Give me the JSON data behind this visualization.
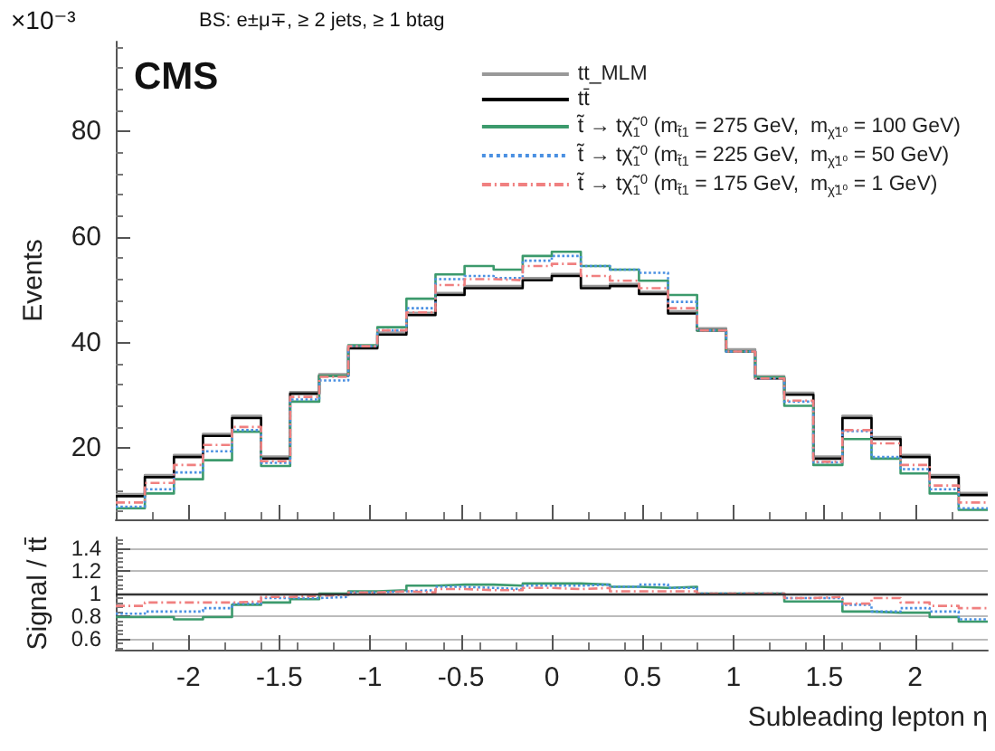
{
  "chart_data": [
    {
      "type": "histogram",
      "ylabel": "Events",
      "annotations": [
        "×10⁻³",
        "BS: e±μ∓, ≥ 2 jets, ≥ 1 btag",
        "CMS"
      ],
      "bins": [
        -2.4,
        -2.24,
        -2.08,
        -1.92,
        -1.76,
        -1.6,
        -1.44,
        -1.28,
        -1.12,
        -0.96,
        -0.8,
        -0.64,
        -0.48,
        -0.32,
        -0.16,
        0,
        0.16,
        0.32,
        0.48,
        0.64,
        0.8,
        0.96,
        1.12,
        1.28,
        1.44,
        1.6,
        1.76,
        1.92,
        2.08,
        2.24,
        2.4
      ],
      "series": [
        {
          "name": "tt_MLM",
          "color": "#999999",
          "line_style": "solid",
          "values": [
            11.3,
            14.9,
            18.7,
            22.7,
            26.1,
            18.4,
            30.6,
            34.0,
            39.2,
            41.9,
            45.6,
            49.4,
            50.7,
            50.7,
            52.2,
            53.0,
            50.7,
            51.1,
            49.6,
            45.9,
            42.7,
            38.7,
            33.6,
            30.5,
            18.4,
            26.1,
            22.1,
            18.7,
            14.9,
            11.5
          ]
        },
        {
          "name": "tt̄",
          "color": "#000000",
          "line_style": "solid",
          "values": [
            10.9,
            14.5,
            18.3,
            22.3,
            25.7,
            18.0,
            30.3,
            33.7,
            38.9,
            41.5,
            45.2,
            49.0,
            50.3,
            50.3,
            51.8,
            52.6,
            50.3,
            50.7,
            49.2,
            45.5,
            42.3,
            38.3,
            33.2,
            30.1,
            18.0,
            25.7,
            21.7,
            18.3,
            14.5,
            11.1
          ]
        },
        {
          "name": "t̃ → tχ̃$_{1}$$^{0}$ (m$_{t̃1}$ = 275 GeV,  m$_{χ̃1⁰}$ = 100 GeV)",
          "color": "#3c9a6c",
          "line_style": "solid",
          "values": [
            8.6,
            11.4,
            14.1,
            17.7,
            23.1,
            16.6,
            28.8,
            33.7,
            39.5,
            42.9,
            48.3,
            52.9,
            54.5,
            53.8,
            56.4,
            57.2,
            54.5,
            53.8,
            51.7,
            49.0,
            42.3,
            38.3,
            33.4,
            28.0,
            16.8,
            21.7,
            18.0,
            15.2,
            11.4,
            8.3
          ]
        },
        {
          "name": "t̃ → tχ̃$_{1}$$^{0}$ (m$_{t̃1}$ = 225 GeV,  m$_{χ̃1⁰}$ = 50 GeV)",
          "color": "#4a90e2",
          "line_style": "dotted",
          "values": [
            8.9,
            12.2,
            15.4,
            19.4,
            23.4,
            17.2,
            29.2,
            32.8,
            39.3,
            42.3,
            46.5,
            52.0,
            52.6,
            52.2,
            55.5,
            56.4,
            54.5,
            53.8,
            53.2,
            47.7,
            42.3,
            38.3,
            33.2,
            28.8,
            17.3,
            23.2,
            18.3,
            16.0,
            12.2,
            8.6
          ]
        },
        {
          "name": "t̃ → tχ̃$_{1}$$^{0}$ (m$_{t̃1}$ = 175 GeV,  m$_{χ̃1⁰}$ = 1 GeV)",
          "color": "#f08080",
          "line_style": "dashed",
          "values": [
            9.7,
            13.4,
            16.8,
            20.6,
            24.0,
            17.5,
            29.7,
            33.5,
            39.3,
            42.3,
            45.7,
            50.9,
            52.0,
            51.8,
            54.5,
            54.9,
            52.6,
            51.7,
            50.3,
            46.5,
            42.3,
            38.3,
            33.2,
            29.0,
            17.4,
            23.4,
            20.9,
            16.8,
            12.9,
            9.7
          ]
        }
      ],
      "xlim": [
        -2.4,
        2.4
      ],
      "xticks": [
        -2,
        -1.5,
        -1,
        -0.5,
        0,
        0.5,
        1,
        1.5,
        2
      ],
      "ylim": [
        6.5,
        97
      ],
      "yticks": [
        20,
        40,
        60,
        80
      ],
      "tick_labels": "y",
      "legend": "top right",
      "grid": false
    },
    {
      "type": "histogram",
      "xlabel": "Subleading lepton η",
      "ylabel": "Signal / tt̄",
      "bins": [
        -2.4,
        -2.24,
        -2.08,
        -1.92,
        -1.76,
        -1.6,
        -1.44,
        -1.28,
        -1.12,
        -0.96,
        -0.8,
        -0.64,
        -0.48,
        -0.32,
        -0.16,
        0,
        0.16,
        0.32,
        0.48,
        0.64,
        0.8,
        0.96,
        1.12,
        1.28,
        1.44,
        1.6,
        1.76,
        1.92,
        2.08,
        2.24,
        2.4
      ],
      "series": [
        {
          "color": "#3c9a6c",
          "line_style": "solid",
          "values": [
            0.79,
            0.79,
            0.77,
            0.79,
            0.9,
            0.92,
            0.95,
            1.0,
            1.02,
            1.03,
            1.07,
            1.08,
            1.08,
            1.07,
            1.09,
            1.09,
            1.08,
            1.06,
            1.05,
            1.06,
            1.0,
            1.0,
            1.0,
            0.93,
            0.93,
            0.84,
            0.83,
            0.83,
            0.79,
            0.75
          ]
        },
        {
          "color": "#4a90e2",
          "line_style": "dotted",
          "values": [
            0.82,
            0.84,
            0.84,
            0.87,
            0.91,
            0.96,
            0.96,
            0.97,
            1.01,
            1.02,
            1.03,
            1.06,
            1.05,
            1.04,
            1.07,
            1.07,
            1.08,
            1.06,
            1.08,
            1.05,
            1.0,
            1.0,
            1.0,
            0.96,
            0.96,
            0.9,
            0.84,
            0.87,
            0.84,
            0.77
          ]
        },
        {
          "color": "#f08080",
          "line_style": "dashed",
          "values": [
            0.89,
            0.92,
            0.92,
            0.92,
            0.93,
            0.97,
            0.98,
            0.99,
            1.01,
            1.02,
            1.01,
            1.04,
            1.03,
            1.03,
            1.05,
            1.04,
            1.05,
            1.02,
            1.02,
            1.02,
            1.0,
            1.0,
            1.0,
            0.96,
            0.97,
            0.91,
            0.96,
            0.92,
            0.89,
            0.87
          ]
        }
      ],
      "ref_lines": [
        {
          "axis": "y",
          "value": 1,
          "color": "#333333"
        }
      ],
      "xlim": [
        -2.4,
        2.4
      ],
      "xticks": [
        -2,
        -1.5,
        -1,
        -0.5,
        0,
        0.5,
        1,
        1.5,
        2
      ],
      "ylim": [
        0.5,
        1.5
      ],
      "yticks": [
        0.6,
        0.8,
        1,
        1.2,
        1.4
      ],
      "grid": "y",
      "legend": false
    }
  ]
}
